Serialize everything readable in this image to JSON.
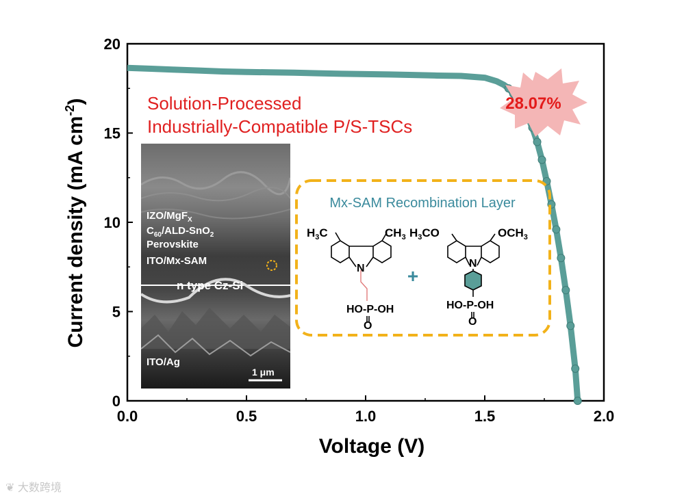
{
  "chart_data": {
    "type": "line",
    "xlabel": "Voltage (V)",
    "ylabel_main": "Current density (mA cm",
    "ylabel_sup": "-2",
    "ylabel_end": ")",
    "xlim": [
      0,
      2.0
    ],
    "ylim": [
      0,
      20
    ],
    "xticks": [
      "0.0",
      "0.5",
      "1.0",
      "1.5",
      "2.0"
    ],
    "yticks": [
      "0",
      "5",
      "10",
      "15",
      "20"
    ],
    "series": [
      {
        "name": "J-V",
        "color": "#5a9e98",
        "x": [
          0.0,
          0.1,
          0.2,
          0.3,
          0.4,
          0.5,
          0.6,
          0.7,
          0.8,
          0.9,
          1.0,
          1.1,
          1.2,
          1.3,
          1.4,
          1.5,
          1.55,
          1.58,
          1.6,
          1.62,
          1.64,
          1.66,
          1.68,
          1.7,
          1.72,
          1.74,
          1.76,
          1.78,
          1.8,
          1.82,
          1.84,
          1.86,
          1.88,
          1.89
        ],
        "y": [
          18.65,
          18.6,
          18.55,
          18.5,
          18.45,
          18.42,
          18.4,
          18.38,
          18.35,
          18.32,
          18.3,
          18.28,
          18.25,
          18.22,
          18.2,
          18.1,
          17.9,
          17.7,
          17.5,
          17.2,
          16.8,
          16.35,
          15.9,
          15.3,
          14.5,
          13.5,
          12.3,
          11.0,
          9.6,
          8.0,
          6.2,
          4.2,
          1.8,
          0.0
        ]
      }
    ]
  },
  "annotations": {
    "efficiency": "28.07%",
    "title_line1": "Solution-Processed",
    "title_line2": "Industrially-Compatible P/S-TSCs",
    "sem": {
      "izo_main": "IZO/MgF",
      "izo_sub": "X",
      "c60_a": "C",
      "c60_sub": "60",
      "c60_b": "/ALD-SnO",
      "c60_sub2": "2",
      "perovskite": "Perovskite",
      "ito_sam": "ITO/Mx-SAM",
      "cz_si": "n type Cz-Si",
      "ito_ag": "ITO/Ag",
      "scale": "1 μm"
    },
    "box_title": "Mx-SAM Recombination Layer",
    "mol1": {
      "left_sub": "H",
      "left_sub_num": "3",
      "left_c": "C",
      "right": "CH",
      "right_num": "3",
      "n": "N",
      "p_group": "HO-P-OH",
      "o": "O"
    },
    "mol2": {
      "left": "H",
      "left_num": "3",
      "left_b": "CO",
      "right": "OCH",
      "right_num": "3",
      "n": "N",
      "p_group": "HO-P-OH",
      "o": "O"
    },
    "plus": "+",
    "watermark": "大数跨境"
  },
  "colors": {
    "curve": "#5a9e98",
    "title_red": "#e02020",
    "efficiency_red": "#e31b1b",
    "starburst": "#f4b6b6",
    "dashed_box": "#f2b21a",
    "box_title": "#3a8a9c"
  }
}
